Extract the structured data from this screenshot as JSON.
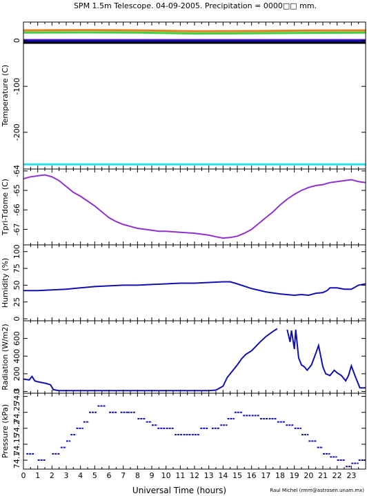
{
  "page": {
    "title": "SPM 1.5m Telescope. 04-09-2005. Precipitation = 0000□□ mm.",
    "credit": "Raul Michel (rmm@astrosen.unam.mx)"
  },
  "chart_data": [
    {
      "type": "line",
      "id": "temperature",
      "ylabel": "Temperature (C)",
      "ylim": [
        -280,
        40
      ],
      "yticks": [
        0,
        -100,
        -200
      ],
      "xlim": [
        0,
        24
      ],
      "series": [
        {
          "color": "#e08020",
          "x": [
            0,
            4,
            8,
            12,
            16,
            20,
            24
          ],
          "y": [
            22,
            22.5,
            22,
            20,
            20.5,
            21.5,
            22
          ]
        },
        {
          "color": "#40d040",
          "x": [
            0,
            4,
            8,
            12,
            16,
            20,
            24
          ],
          "y": [
            17,
            17.5,
            17,
            15,
            15.5,
            16.5,
            17
          ]
        },
        {
          "color": "#7020c0",
          "x": [
            0,
            24
          ],
          "y": [
            1,
            1
          ]
        },
        {
          "color": "#1010b0",
          "x": [
            0,
            24
          ],
          "y": [
            -1,
            -1
          ]
        },
        {
          "color": "#000000",
          "x": [
            0,
            24
          ],
          "y": [
            -5,
            -5
          ]
        },
        {
          "color": "#30e0e0",
          "x": [
            0,
            24
          ],
          "y": [
            -270,
            -270
          ]
        }
      ]
    },
    {
      "type": "line",
      "id": "tdome",
      "ylabel": "Tpri-Tdome (C)",
      "ylim": [
        -67.8,
        -63.9
      ],
      "yticks": [
        -64,
        -65,
        -66,
        -67
      ],
      "xlim": [
        0,
        24
      ],
      "series": [
        {
          "color": "#9030d0",
          "x": [
            0,
            0.5,
            1,
            1.5,
            2,
            2.5,
            3,
            3.5,
            4,
            4.5,
            5,
            5.5,
            6,
            6.5,
            7,
            7.5,
            8,
            8.5,
            9,
            9.5,
            10,
            11,
            12,
            13,
            13.5,
            14,
            14.5,
            15,
            15.5,
            16,
            16.5,
            17,
            17.5,
            18,
            18.5,
            19,
            19.5,
            20,
            20.5,
            21,
            21.5,
            22,
            22.5,
            23,
            23.5,
            24
          ],
          "y": [
            -64.4,
            -64.3,
            -64.25,
            -64.2,
            -64.3,
            -64.5,
            -64.8,
            -65.1,
            -65.3,
            -65.55,
            -65.8,
            -66.1,
            -66.4,
            -66.6,
            -66.75,
            -66.85,
            -66.95,
            -67.0,
            -67.05,
            -67.1,
            -67.1,
            -67.15,
            -67.2,
            -67.3,
            -67.38,
            -67.45,
            -67.42,
            -67.35,
            -67.2,
            -67.0,
            -66.7,
            -66.4,
            -66.1,
            -65.75,
            -65.45,
            -65.2,
            -65.0,
            -64.85,
            -64.75,
            -64.7,
            -64.6,
            -64.55,
            -64.5,
            -64.45,
            -64.55,
            -64.6
          ]
        }
      ]
    },
    {
      "type": "line",
      "id": "humidity",
      "ylabel": "Humidity (%)",
      "ylim": [
        -3,
        110
      ],
      "yticks": [
        0,
        25,
        50,
        75,
        100
      ],
      "xlim": [
        0,
        24
      ],
      "series": [
        {
          "color": "#1010b0",
          "x": [
            0,
            1,
            2,
            3,
            4,
            5,
            6,
            7,
            8,
            9,
            10,
            11,
            12,
            13,
            14,
            14.5,
            15,
            16,
            17,
            18,
            19,
            19.5,
            20,
            20.5,
            21,
            21.3,
            21.5,
            22,
            22.5,
            23,
            23.5,
            24
          ],
          "y": [
            42,
            42,
            43,
            44,
            46,
            48,
            49,
            50,
            50,
            51,
            52,
            53,
            53,
            54,
            55,
            55,
            52,
            45,
            40,
            37,
            35,
            36,
            35,
            38,
            39,
            42,
            46,
            46,
            44,
            44,
            50,
            52
          ]
        }
      ]
    },
    {
      "type": "line",
      "id": "radiation",
      "ylabel": "Radiation (W/m2)",
      "ylim": [
        -20,
        800
      ],
      "yticks": [
        0,
        200,
        400,
        600
      ],
      "xlim": [
        0,
        24
      ],
      "series": [
        {
          "color": "#1010b0",
          "x": [
            0,
            0.4,
            0.6,
            0.8,
            1.0,
            1.3,
            1.6,
            1.9,
            2.1,
            2.5,
            3,
            4,
            6,
            8,
            10,
            12,
            13,
            13.5,
            14,
            14.3,
            14.6,
            15,
            15.3,
            15.6,
            16,
            16.3,
            16.6,
            17,
            17.5,
            17.8
          ],
          "y": [
            140,
            130,
            170,
            120,
            110,
            100,
            90,
            75,
            20,
            10,
            10,
            10,
            10,
            10,
            10,
            10,
            10,
            15,
            60,
            160,
            220,
            300,
            370,
            420,
            460,
            510,
            560,
            620,
            680,
            710
          ]
        },
        {
          "color": "#1010b0",
          "x": [
            18.5,
            18.7,
            18.8,
            19.0,
            19.1,
            19.3,
            19.5,
            19.7,
            19.9,
            20.2,
            20.5,
            20.7,
            21.0,
            21.2,
            21.5,
            21.8,
            22.0,
            22.3,
            22.6,
            22.8,
            23.0,
            23.3,
            23.6,
            24
          ],
          "y": [
            700,
            560,
            690,
            480,
            700,
            380,
            300,
            280,
            240,
            300,
            430,
            520,
            280,
            200,
            180,
            240,
            210,
            180,
            120,
            180,
            290,
            160,
            40,
            40
          ]
        }
      ]
    },
    {
      "type": "scatter",
      "id": "pressure",
      "ylabel": "Pressure (kPa)",
      "ylabel_ticks": [
        "74.1",
        "74.15",
        "74.2",
        "74.25",
        "74.3"
      ],
      "ylim": [
        74.072,
        74.31
      ],
      "yticks": [
        74.1,
        74.15,
        74.2,
        74.25,
        74.3
      ],
      "xlim": [
        0,
        24
      ],
      "series": [
        {
          "color": "#1010b0",
          "x": [
            0.2,
            1.0,
            2.0,
            2.6,
            3.0,
            3.3,
            3.7,
            4.2,
            4.6,
            5.2,
            6.0,
            6.8,
            7.3,
            8.0,
            8.6,
            9.0,
            9.4,
            10.0,
            10.6,
            11.2,
            11.8,
            12.4,
            13.2,
            13.8,
            14.3,
            14.8,
            15.4,
            16.0,
            16.6,
            17.2,
            17.8,
            18.4,
            19.0,
            19.5,
            20.0,
            20.6,
            21.0,
            21.5,
            22.0,
            22.6,
            23.0,
            23.5
          ],
          "y": [
            74.12,
            74.1,
            74.12,
            74.14,
            74.16,
            74.18,
            74.2,
            74.22,
            74.25,
            74.27,
            74.25,
            74.25,
            74.25,
            74.23,
            74.22,
            74.21,
            74.2,
            74.2,
            74.18,
            74.18,
            74.18,
            74.2,
            74.2,
            74.21,
            74.23,
            74.25,
            74.24,
            74.24,
            74.23,
            74.23,
            74.22,
            74.21,
            74.2,
            74.18,
            74.16,
            74.14,
            74.12,
            74.11,
            74.1,
            74.08,
            74.09,
            74.1
          ]
        }
      ]
    }
  ],
  "xaxis": {
    "label": "Universal Time (hours)",
    "ticks": [
      "0",
      "1",
      "2",
      "3",
      "4",
      "5",
      "6",
      "7",
      "8",
      "9",
      "10",
      "11",
      "12",
      "13",
      "14",
      "15",
      "16",
      "17",
      "18",
      "19",
      "20",
      "21",
      "22",
      "23"
    ]
  }
}
